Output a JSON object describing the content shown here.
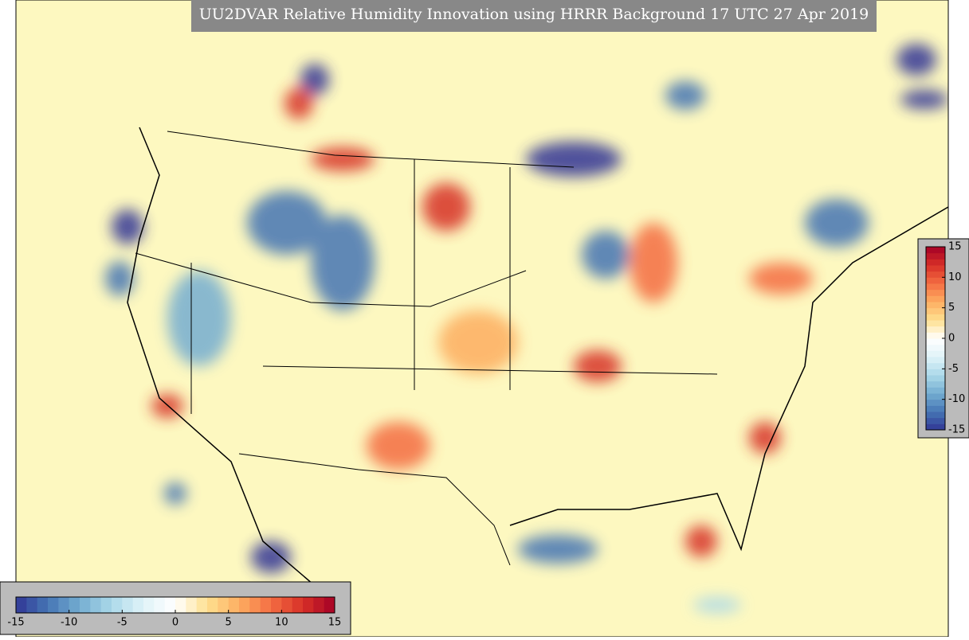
{
  "title": "UU2DVAR Relative Humidity Innovation using HRRR Background 17 UTC 27 Apr 2019",
  "colorbar": {
    "lim": [
      -15,
      15
    ],
    "ticks": [
      -15,
      -10,
      -5,
      0,
      5,
      10,
      15
    ],
    "steps": 30,
    "colors": [
      "#313695",
      "#4575b4",
      "#74add1",
      "#abd9e9",
      "#e0f3f8",
      "#ffffff",
      "#fee090",
      "#fdae61",
      "#f46d43",
      "#d73027",
      "#a50026"
    ]
  }
}
